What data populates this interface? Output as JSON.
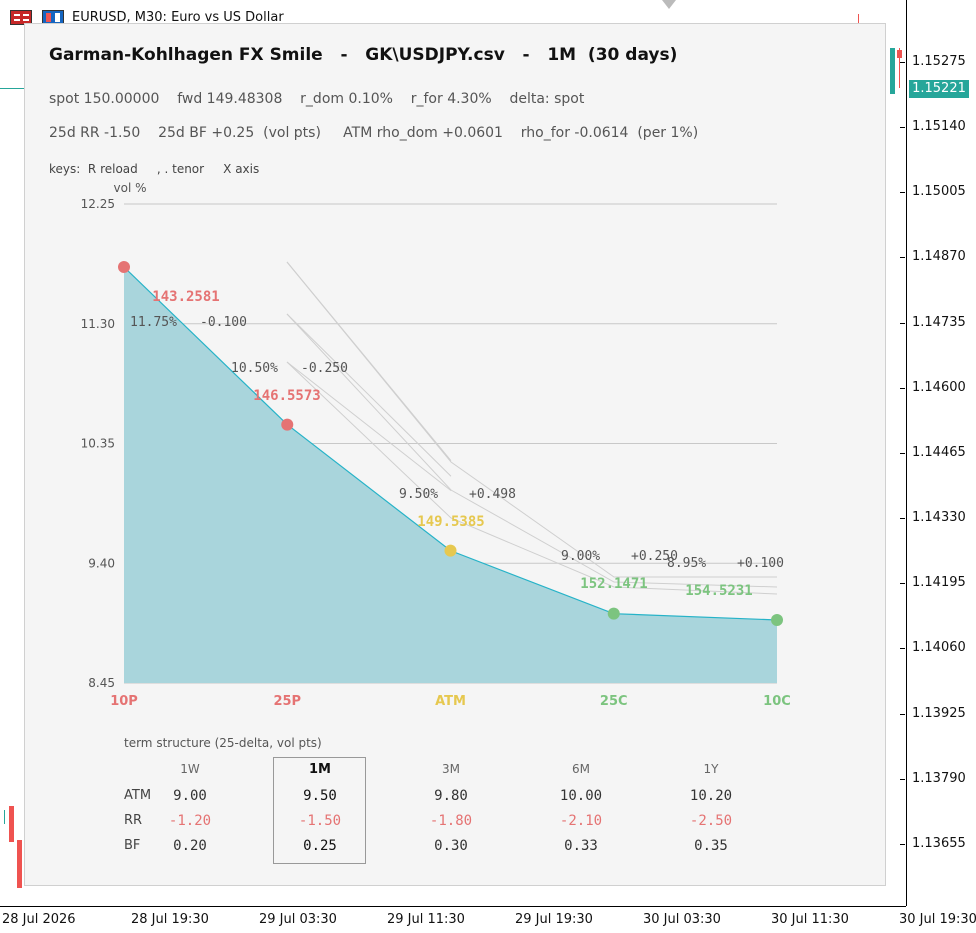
{
  "terminal": {
    "symbol_title": "EURUSD, M30:  Euro vs US Dollar",
    "price_axis": {
      "labels": [
        "1.15275",
        "1.15140",
        "1.15005",
        "1.14870",
        "1.14735",
        "1.14600",
        "1.14465",
        "1.14330",
        "1.14195",
        "1.14060",
        "1.13925",
        "1.13790",
        "1.13655"
      ],
      "current_price": "1.15221",
      "current_color": "#26a69a"
    },
    "time_axis": {
      "labels": [
        "28 Jul 2026",
        "28 Jul 19:30",
        "29 Jul 03:30",
        "29 Jul 11:30",
        "29 Jul 19:30",
        "30 Jul 03:30",
        "30 Jul 11:30",
        "30 Jul 19:30"
      ]
    }
  },
  "panel": {
    "title": "Garman-Kohlhagen FX Smile   -   GK\\USDJPY.csv   -   1M  (30 days)",
    "info_line1": "spot 150.00000    fwd 149.48308    r_dom 0.10%    r_for 4.30%    delta: spot",
    "info_line2": "25d RR -1.50    25d BF +0.25  (vol pts)     ATM rho_dom +0.0601    rho_for -0.0614  (per 1%)",
    "keys_line": "keys:  R reload     , . tenor     X axis"
  },
  "chart_data": {
    "type": "area",
    "ylabel": "vol %",
    "ylim": [
      8.45,
      12.25
    ],
    "y_ticks": [
      "12.25",
      "11.30",
      "10.35",
      "9.40",
      "8.45"
    ],
    "categories": [
      "10P",
      "25P",
      "ATM",
      "25C",
      "10C"
    ],
    "category_colors": [
      "#e57373",
      "#e57373",
      "#e6c84f",
      "#7cc47f",
      "#7cc47f"
    ],
    "values": [
      11.75,
      10.5,
      9.5,
      9.0,
      8.95
    ],
    "strikes": [
      "143.2581",
      "146.5573",
      "149.5385",
      "152.1471",
      "154.5231"
    ],
    "annotations": [
      {
        "vol": "11.75%",
        "delta": "-0.100"
      },
      {
        "vol": "10.50%",
        "delta": "-0.250"
      },
      {
        "vol": "9.50%",
        "delta": "+0.498"
      },
      {
        "vol": "9.00%",
        "delta": "+0.250"
      },
      {
        "vol": "8.95%",
        "delta": "+0.100"
      }
    ],
    "fill_color": "#a9d5dc",
    "line_color": "#26b3c8"
  },
  "term_structure": {
    "title": "term structure (25-delta, vol pts)",
    "tenors": [
      "1W",
      "1M",
      "3M",
      "6M",
      "1Y"
    ],
    "selected": "1M",
    "rows": [
      {
        "label": "ATM",
        "values": [
          "9.00",
          "9.50",
          "9.80",
          "10.00",
          "10.20"
        ],
        "color": "#333333"
      },
      {
        "label": "RR",
        "values": [
          "-1.20",
          "-1.50",
          "-1.80",
          "-2.10",
          "-2.50"
        ],
        "color": "#e57373"
      },
      {
        "label": "BF",
        "values": [
          "0.20",
          "0.25",
          "0.30",
          "0.33",
          "0.35"
        ],
        "color": "#333333"
      }
    ]
  }
}
